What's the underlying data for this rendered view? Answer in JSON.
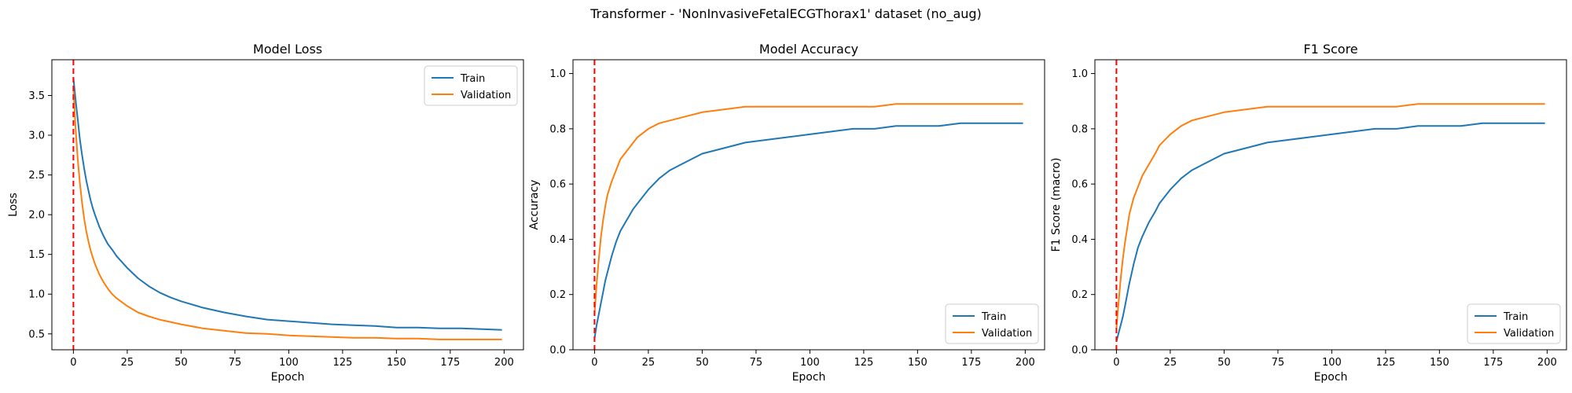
{
  "suptitle": "Transformer - 'NonInvasiveFetalECGThorax1' dataset (no_aug)",
  "colors": {
    "train": "#1f77b4",
    "validation": "#ff7f0e",
    "marker_line": "#ff0000",
    "axes": "#000000",
    "legend_border": "#cccccc"
  },
  "chart_data": [
    {
      "type": "line",
      "title": "Model Loss",
      "xlabel": "Epoch",
      "ylabel": "Loss",
      "xlim": [
        -10,
        209
      ],
      "ylim": [
        0.3,
        3.95
      ],
      "xticks": [
        0,
        25,
        50,
        75,
        100,
        125,
        150,
        175,
        200
      ],
      "yticks": [
        0.5,
        1.0,
        1.5,
        2.0,
        2.5,
        3.0,
        3.5
      ],
      "ytick_labels": [
        "0.5",
        "1.0",
        "1.5",
        "2.0",
        "2.5",
        "3.0",
        "3.5"
      ],
      "vline_x": 0,
      "grid": false,
      "legend_position": "top-right",
      "series": [
        {
          "name": "Train",
          "color_key": "train",
          "x": [
            0,
            1,
            2,
            3,
            4,
            5,
            6,
            7,
            8,
            9,
            10,
            12,
            14,
            16,
            18,
            20,
            25,
            30,
            35,
            40,
            45,
            50,
            60,
            70,
            80,
            90,
            100,
            110,
            120,
            130,
            140,
            150,
            160,
            170,
            180,
            190,
            199
          ],
          "values": [
            3.72,
            3.45,
            3.2,
            2.95,
            2.75,
            2.58,
            2.43,
            2.3,
            2.18,
            2.08,
            2.0,
            1.85,
            1.73,
            1.63,
            1.56,
            1.48,
            1.33,
            1.2,
            1.1,
            1.02,
            0.96,
            0.91,
            0.83,
            0.77,
            0.72,
            0.68,
            0.66,
            0.64,
            0.62,
            0.61,
            0.6,
            0.58,
            0.58,
            0.57,
            0.57,
            0.56,
            0.55
          ]
        },
        {
          "name": "Validation",
          "color_key": "validation",
          "x": [
            0,
            1,
            2,
            3,
            4,
            5,
            6,
            7,
            8,
            9,
            10,
            12,
            14,
            16,
            18,
            20,
            25,
            30,
            35,
            40,
            45,
            50,
            60,
            70,
            80,
            90,
            100,
            110,
            120,
            130,
            140,
            150,
            160,
            170,
            180,
            190,
            199
          ],
          "values": [
            3.6,
            3.1,
            2.7,
            2.4,
            2.15,
            1.95,
            1.79,
            1.66,
            1.55,
            1.46,
            1.38,
            1.25,
            1.15,
            1.07,
            1.0,
            0.95,
            0.85,
            0.77,
            0.72,
            0.68,
            0.65,
            0.62,
            0.57,
            0.54,
            0.51,
            0.5,
            0.48,
            0.47,
            0.46,
            0.45,
            0.45,
            0.44,
            0.44,
            0.43,
            0.43,
            0.43,
            0.43
          ]
        }
      ]
    },
    {
      "type": "line",
      "title": "Model Accuracy",
      "xlabel": "Epoch",
      "ylabel": "Accuracy",
      "xlim": [
        -10,
        209
      ],
      "ylim": [
        0.0,
        1.05
      ],
      "xticks": [
        0,
        25,
        50,
        75,
        100,
        125,
        150,
        175,
        200
      ],
      "yticks": [
        0.0,
        0.2,
        0.4,
        0.6,
        0.8,
        1.0
      ],
      "ytick_labels": [
        "0.0",
        "0.2",
        "0.4",
        "0.6",
        "0.8",
        "1.0"
      ],
      "vline_x": 0,
      "grid": false,
      "legend_position": "bottom-right",
      "series": [
        {
          "name": "Train",
          "color_key": "train",
          "x": [
            0,
            1,
            2,
            3,
            4,
            5,
            6,
            8,
            10,
            12,
            15,
            18,
            20,
            25,
            30,
            35,
            40,
            45,
            50,
            60,
            70,
            80,
            90,
            100,
            110,
            120,
            130,
            140,
            150,
            160,
            170,
            180,
            190,
            199
          ],
          "values": [
            0.04,
            0.09,
            0.13,
            0.17,
            0.21,
            0.25,
            0.28,
            0.34,
            0.39,
            0.43,
            0.47,
            0.51,
            0.53,
            0.58,
            0.62,
            0.65,
            0.67,
            0.69,
            0.71,
            0.73,
            0.75,
            0.76,
            0.77,
            0.78,
            0.79,
            0.8,
            0.8,
            0.81,
            0.81,
            0.81,
            0.82,
            0.82,
            0.82,
            0.82
          ]
        },
        {
          "name": "Validation",
          "color_key": "validation",
          "x": [
            0,
            1,
            2,
            3,
            4,
            5,
            6,
            8,
            10,
            12,
            15,
            18,
            20,
            25,
            30,
            35,
            40,
            45,
            50,
            60,
            70,
            80,
            90,
            100,
            110,
            120,
            130,
            140,
            150,
            160,
            170,
            180,
            190,
            199
          ],
          "values": [
            0.13,
            0.24,
            0.33,
            0.41,
            0.47,
            0.52,
            0.56,
            0.61,
            0.65,
            0.69,
            0.72,
            0.75,
            0.77,
            0.8,
            0.82,
            0.83,
            0.84,
            0.85,
            0.86,
            0.87,
            0.88,
            0.88,
            0.88,
            0.88,
            0.88,
            0.88,
            0.88,
            0.89,
            0.89,
            0.89,
            0.89,
            0.89,
            0.89,
            0.89
          ]
        }
      ]
    },
    {
      "type": "line",
      "title": "F1 Score",
      "xlabel": "Epoch",
      "ylabel": "F1 Score (macro)",
      "xlim": [
        -10,
        209
      ],
      "ylim": [
        0.0,
        1.05
      ],
      "xticks": [
        0,
        25,
        50,
        75,
        100,
        125,
        150,
        175,
        200
      ],
      "yticks": [
        0.0,
        0.2,
        0.4,
        0.6,
        0.8,
        1.0
      ],
      "ytick_labels": [
        "0.0",
        "0.2",
        "0.4",
        "0.6",
        "0.8",
        "1.0"
      ],
      "vline_x": 0,
      "grid": false,
      "legend_position": "bottom-right",
      "series": [
        {
          "name": "Train",
          "color_key": "train",
          "x": [
            0,
            1,
            2,
            3,
            4,
            5,
            6,
            8,
            10,
            12,
            15,
            18,
            20,
            25,
            30,
            35,
            40,
            45,
            50,
            60,
            70,
            80,
            90,
            100,
            110,
            120,
            130,
            140,
            150,
            160,
            170,
            180,
            190,
            199
          ],
          "values": [
            0.03,
            0.06,
            0.09,
            0.12,
            0.16,
            0.2,
            0.24,
            0.31,
            0.37,
            0.41,
            0.46,
            0.5,
            0.53,
            0.58,
            0.62,
            0.65,
            0.67,
            0.69,
            0.71,
            0.73,
            0.75,
            0.76,
            0.77,
            0.78,
            0.79,
            0.8,
            0.8,
            0.81,
            0.81,
            0.81,
            0.82,
            0.82,
            0.82,
            0.82
          ]
        },
        {
          "name": "Validation",
          "color_key": "validation",
          "x": [
            0,
            1,
            2,
            3,
            4,
            5,
            6,
            8,
            10,
            12,
            15,
            18,
            20,
            25,
            30,
            35,
            40,
            45,
            50,
            60,
            70,
            80,
            90,
            100,
            110,
            120,
            130,
            140,
            150,
            160,
            170,
            180,
            190,
            199
          ],
          "values": [
            0.08,
            0.17,
            0.26,
            0.33,
            0.39,
            0.44,
            0.49,
            0.55,
            0.59,
            0.63,
            0.67,
            0.71,
            0.74,
            0.78,
            0.81,
            0.83,
            0.84,
            0.85,
            0.86,
            0.87,
            0.88,
            0.88,
            0.88,
            0.88,
            0.88,
            0.88,
            0.88,
            0.89,
            0.89,
            0.89,
            0.89,
            0.89,
            0.89,
            0.89
          ]
        }
      ]
    }
  ]
}
